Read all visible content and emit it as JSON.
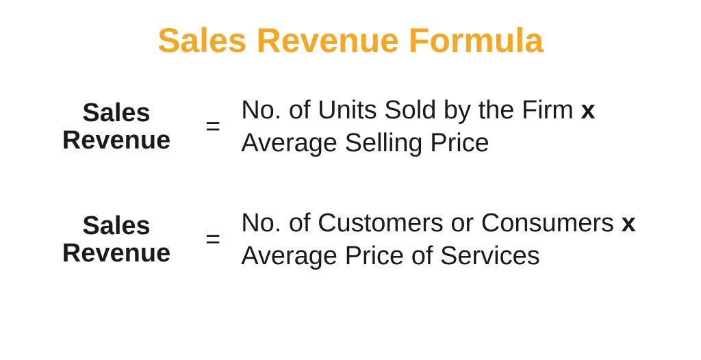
{
  "colors": {
    "title": "#f5a623",
    "text": "#1a1a1a",
    "background": "#ffffff"
  },
  "typography": {
    "title_fontsize": 50,
    "body_fontsize": 38
  },
  "title": "Sales Revenue Formula",
  "formulas": [
    {
      "label_line1": "Sales",
      "label_line2": "Revenue",
      "equals": "=",
      "rhs_line1_pre": "No. of Units Sold by the Firm ",
      "rhs_line1_mult": "x",
      "rhs_line2": "Average Selling Price"
    },
    {
      "label_line1": "Sales",
      "label_line2": "Revenue",
      "equals": "=",
      "rhs_line1_pre": "No. of Customers or Consumers ",
      "rhs_line1_mult": "x",
      "rhs_line2": "Average Price of Services"
    }
  ]
}
